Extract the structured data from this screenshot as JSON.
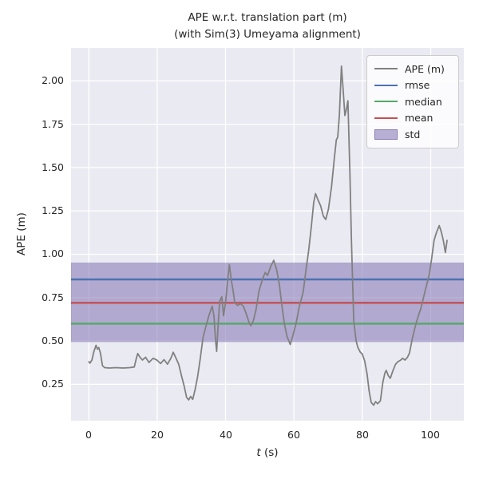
{
  "chart_data": {
    "type": "line",
    "title": "APE w.r.t. translation part (m)\n(with Sim(3) Umeyama alignment)",
    "title_line1": "APE w.r.t. translation part (m)",
    "title_line2": "(with Sim(3) Umeyama alignment)",
    "xlabel": "t (s)",
    "xlabel_var": "t",
    "xlabel_unit": " (s)",
    "ylabel": "APE (m)",
    "xlim": [
      -5.2,
      109.7
    ],
    "ylim": [
      0.04,
      2.19
    ],
    "grid": true,
    "background_color": "#EAEAF2",
    "gridline_color": "#FFFFFF",
    "xticks": [
      {
        "label": "0",
        "t": 0
      },
      {
        "label": "20",
        "t": 20
      },
      {
        "label": "40",
        "t": 40
      },
      {
        "label": "60",
        "t": 60
      },
      {
        "label": "80",
        "t": 80
      },
      {
        "label": "100",
        "t": 100
      }
    ],
    "yticks": [
      {
        "label": "0.25",
        "v": 0.25
      },
      {
        "label": "0.50",
        "v": 0.5
      },
      {
        "label": "0.75",
        "v": 0.75
      },
      {
        "label": "1.00",
        "v": 1.0
      },
      {
        "label": "1.25",
        "v": 1.25
      },
      {
        "label": "1.50",
        "v": 1.5
      },
      {
        "label": "1.75",
        "v": 1.75
      },
      {
        "label": "2.00",
        "v": 2.0
      }
    ],
    "legend": {
      "position": "upper right",
      "entries": [
        {
          "label": "APE (m)",
          "color": "#808080",
          "type": "line"
        },
        {
          "label": "rmse",
          "color": "#4C72B0",
          "type": "line"
        },
        {
          "label": "median",
          "color": "#55A868",
          "type": "line"
        },
        {
          "label": "mean",
          "color": "#C44E52",
          "type": "line"
        },
        {
          "label": "std",
          "color": "#8172B2",
          "type": "patch"
        }
      ]
    },
    "stats": {
      "rmse": 0.855,
      "mean": 0.72,
      "median": 0.6,
      "std": 0.23
    },
    "std_band": [
      0.495,
      0.95
    ],
    "series": [
      {
        "name": "APE (m)",
        "color": "#808080",
        "points": [
          [
            0,
            0.38
          ],
          [
            0.3,
            0.372
          ],
          [
            0.9,
            0.39
          ],
          [
            1.5,
            0.44
          ],
          [
            2.1,
            0.475
          ],
          [
            2.5,
            0.452
          ],
          [
            2.9,
            0.462
          ],
          [
            3.4,
            0.43
          ],
          [
            4.0,
            0.357
          ],
          [
            4.6,
            0.346
          ],
          [
            6,
            0.344
          ],
          [
            8,
            0.346
          ],
          [
            10,
            0.344
          ],
          [
            12,
            0.346
          ],
          [
            13.3,
            0.35
          ],
          [
            13.9,
            0.4
          ],
          [
            14.3,
            0.427
          ],
          [
            15.0,
            0.405
          ],
          [
            15.7,
            0.39
          ],
          [
            16.6,
            0.406
          ],
          [
            17.6,
            0.376
          ],
          [
            18.8,
            0.4
          ],
          [
            19.9,
            0.39
          ],
          [
            21.0,
            0.37
          ],
          [
            22.0,
            0.392
          ],
          [
            23.0,
            0.366
          ],
          [
            24.0,
            0.4
          ],
          [
            24.7,
            0.435
          ],
          [
            25.5,
            0.4
          ],
          [
            26.3,
            0.365
          ],
          [
            27.1,
            0.3
          ],
          [
            27.9,
            0.24
          ],
          [
            28.6,
            0.175
          ],
          [
            29.2,
            0.16
          ],
          [
            29.8,
            0.18
          ],
          [
            30.4,
            0.163
          ],
          [
            31.1,
            0.22
          ],
          [
            31.8,
            0.29
          ],
          [
            32.6,
            0.4
          ],
          [
            33.4,
            0.52
          ],
          [
            34.2,
            0.58
          ],
          [
            35.1,
            0.645
          ],
          [
            36.1,
            0.7
          ],
          [
            36.6,
            0.645
          ],
          [
            37.1,
            0.5
          ],
          [
            37.4,
            0.44
          ],
          [
            37.9,
            0.62
          ],
          [
            38.3,
            0.73
          ],
          [
            38.9,
            0.755
          ],
          [
            39.4,
            0.645
          ],
          [
            40.0,
            0.72
          ],
          [
            40.6,
            0.845
          ],
          [
            41.1,
            0.94
          ],
          [
            41.7,
            0.85
          ],
          [
            42.2,
            0.79
          ],
          [
            42.7,
            0.72
          ],
          [
            43.5,
            0.705
          ],
          [
            44.4,
            0.715
          ],
          [
            45.2,
            0.7
          ],
          [
            46.0,
            0.66
          ],
          [
            46.8,
            0.61
          ],
          [
            47.4,
            0.588
          ],
          [
            48.1,
            0.615
          ],
          [
            48.9,
            0.68
          ],
          [
            49.8,
            0.79
          ],
          [
            50.9,
            0.862
          ],
          [
            51.6,
            0.895
          ],
          [
            52.3,
            0.878
          ],
          [
            53.2,
            0.93
          ],
          [
            54.1,
            0.965
          ],
          [
            54.9,
            0.915
          ],
          [
            55.7,
            0.83
          ],
          [
            56.4,
            0.715
          ],
          [
            57.2,
            0.6
          ],
          [
            58.0,
            0.525
          ],
          [
            58.9,
            0.48
          ],
          [
            59.6,
            0.525
          ],
          [
            60.6,
            0.6
          ],
          [
            61.6,
            0.7
          ],
          [
            62.7,
            0.78
          ],
          [
            63.6,
            0.92
          ],
          [
            64.3,
            1.02
          ],
          [
            65.1,
            1.16
          ],
          [
            65.8,
            1.3
          ],
          [
            66.3,
            1.35
          ],
          [
            67.0,
            1.315
          ],
          [
            67.8,
            1.28
          ],
          [
            68.6,
            1.22
          ],
          [
            69.3,
            1.2
          ],
          [
            70.1,
            1.26
          ],
          [
            71.0,
            1.39
          ],
          [
            71.8,
            1.55
          ],
          [
            72.4,
            1.66
          ],
          [
            72.8,
            1.675
          ],
          [
            73.3,
            1.8
          ],
          [
            73.9,
            2.085
          ],
          [
            74.4,
            1.95
          ],
          [
            74.9,
            1.8
          ],
          [
            75.4,
            1.84
          ],
          [
            75.8,
            1.885
          ],
          [
            76.4,
            1.45
          ],
          [
            76.8,
            1.1
          ],
          [
            77.5,
            0.615
          ],
          [
            78.2,
            0.5
          ],
          [
            78.7,
            0.462
          ],
          [
            79.4,
            0.435
          ],
          [
            80.0,
            0.425
          ],
          [
            80.7,
            0.385
          ],
          [
            81.4,
            0.31
          ],
          [
            82.0,
            0.21
          ],
          [
            82.6,
            0.145
          ],
          [
            83.3,
            0.13
          ],
          [
            83.9,
            0.15
          ],
          [
            84.5,
            0.138
          ],
          [
            85.3,
            0.155
          ],
          [
            86.0,
            0.26
          ],
          [
            86.6,
            0.315
          ],
          [
            87.0,
            0.33
          ],
          [
            87.6,
            0.3
          ],
          [
            88.2,
            0.285
          ],
          [
            88.9,
            0.325
          ],
          [
            89.7,
            0.365
          ],
          [
            90.4,
            0.38
          ],
          [
            91.1,
            0.388
          ],
          [
            91.8,
            0.4
          ],
          [
            92.5,
            0.39
          ],
          [
            93.2,
            0.405
          ],
          [
            93.8,
            0.43
          ],
          [
            94.6,
            0.51
          ],
          [
            95.2,
            0.56
          ],
          [
            95.7,
            0.6
          ],
          [
            96.4,
            0.645
          ],
          [
            97.1,
            0.685
          ],
          [
            97.9,
            0.75
          ],
          [
            98.4,
            0.79
          ],
          [
            99.1,
            0.845
          ],
          [
            99.6,
            0.885
          ],
          [
            100.3,
            0.975
          ],
          [
            101.0,
            1.08
          ],
          [
            101.7,
            1.125
          ],
          [
            102.5,
            1.165
          ],
          [
            103.1,
            1.13
          ],
          [
            103.7,
            1.08
          ],
          [
            104.3,
            1.01
          ],
          [
            104.8,
            1.08
          ]
        ]
      },
      {
        "name": "rmse",
        "color": "#4C72B0",
        "value": 0.855
      },
      {
        "name": "median",
        "color": "#55A868",
        "value": 0.6
      },
      {
        "name": "mean",
        "color": "#C44E52",
        "value": 0.72
      },
      {
        "name": "std",
        "color": "#8172B2",
        "band": [
          0.495,
          0.95
        ]
      }
    ]
  }
}
